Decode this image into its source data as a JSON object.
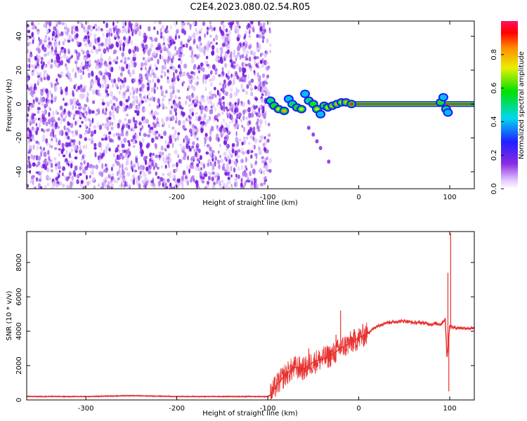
{
  "title": "C2E4.2023.080.02.54.R05",
  "chart_data": [
    {
      "type": "heatmap",
      "xlabel": "Height of straight line (km)",
      "ylabel": "Frequency (Hz)",
      "xlim": [
        -365,
        127
      ],
      "ylim": [
        -50,
        49
      ],
      "xticks": [
        -300,
        -200,
        -100,
        0,
        100
      ],
      "yticks": [
        -40,
        -20,
        0,
        20,
        40
      ],
      "noise_region": {
        "x": [
          -365,
          -97
        ],
        "y": [
          -50,
          49
        ],
        "amplitude": 0.15
      },
      "carrier_line": {
        "x": [
          -10,
          127
        ],
        "y": 0,
        "amplitude": 0.9
      },
      "meteor_trace": [
        {
          "x": -97,
          "y": 2,
          "amplitude": 0.5
        },
        {
          "x": -93,
          "y": -1,
          "amplitude": 0.6
        },
        {
          "x": -88,
          "y": -3,
          "amplitude": 0.7
        },
        {
          "x": -82,
          "y": -4,
          "amplitude": 0.8
        },
        {
          "x": -77,
          "y": 3,
          "amplitude": 0.4
        },
        {
          "x": -73,
          "y": 0,
          "amplitude": 0.5
        },
        {
          "x": -68,
          "y": -2,
          "amplitude": 0.6
        },
        {
          "x": -63,
          "y": -3,
          "amplitude": 0.7
        },
        {
          "x": -59,
          "y": 6,
          "amplitude": 0.4
        },
        {
          "x": -55,
          "y": 2,
          "amplitude": 0.5
        },
        {
          "x": -50,
          "y": 0,
          "amplitude": 0.6
        },
        {
          "x": -46,
          "y": -3,
          "amplitude": 0.7
        },
        {
          "x": -42,
          "y": -6,
          "amplitude": 0.4
        },
        {
          "x": -38,
          "y": -1,
          "amplitude": 0.6
        },
        {
          "x": -34,
          "y": -2,
          "amplitude": 0.7
        },
        {
          "x": -29,
          "y": -1,
          "amplitude": 0.8
        },
        {
          "x": -24,
          "y": 0,
          "amplitude": 0.8
        },
        {
          "x": -19,
          "y": 1,
          "amplitude": 0.7
        },
        {
          "x": -14,
          "y": 1,
          "amplitude": 0.8
        },
        {
          "x": -8,
          "y": 0,
          "amplitude": 0.9
        },
        {
          "x": 90,
          "y": 1,
          "amplitude": 0.6
        },
        {
          "x": 93,
          "y": 4,
          "amplitude": 0.4
        },
        {
          "x": 96,
          "y": -3,
          "amplitude": 0.5
        },
        {
          "x": 98,
          "y": -5,
          "amplitude": 0.4
        }
      ],
      "meteor_tail": [
        {
          "x": -55,
          "y": -14,
          "amplitude": 0.25
        },
        {
          "x": -50,
          "y": -18,
          "amplitude": 0.2
        },
        {
          "x": -46,
          "y": -22,
          "amplitude": 0.2
        },
        {
          "x": -42,
          "y": -26,
          "amplitude": 0.15
        },
        {
          "x": -33,
          "y": -34,
          "amplitude": 0.1
        }
      ],
      "colorbar": {
        "label": "Normalized spectral amplitude",
        "range": [
          0,
          1
        ],
        "ticks": [
          0.0,
          0.2,
          0.4,
          0.6,
          0.8
        ],
        "tick_labels": [
          "0.0",
          "0.2",
          "0.4",
          "0.6",
          "0.8"
        ]
      }
    },
    {
      "type": "line",
      "xlabel": "Height of straight line (km)",
      "ylabel": "SNR (10 * v/v)",
      "xlim": [
        -365,
        127
      ],
      "ylim": [
        0,
        9800
      ],
      "xticks": [
        -300,
        -200,
        -100,
        0,
        100
      ],
      "yticks": [
        0,
        2000,
        4000,
        6000,
        8000
      ],
      "grid": false,
      "series": [
        {
          "color": "#e8302e",
          "x": [
            -365,
            -300,
            -250,
            -200,
            -150,
            -110,
            -100,
            -97,
            -90,
            -80,
            -70,
            -60,
            -50,
            -40,
            -30,
            -20,
            -10,
            0,
            10,
            20,
            30,
            40,
            50,
            60,
            70,
            80,
            85,
            90,
            95,
            97,
            98,
            100,
            105,
            110,
            127
          ],
          "y": [
            200,
            200,
            250,
            200,
            200,
            200,
            200,
            300,
            900,
            1500,
            1900,
            1800,
            2200,
            2400,
            2600,
            3000,
            3300,
            3600,
            3900,
            4300,
            4500,
            4550,
            4600,
            4500,
            4500,
            4400,
            4450,
            4400,
            4700,
            2500,
            3000,
            4300,
            4200,
            4200,
            4150
          ]
        }
      ],
      "spikes": [
        {
          "x": -55,
          "y": 3000
        },
        {
          "x": -20,
          "y": 5200
        },
        {
          "x": -25,
          "y": 3800
        },
        {
          "x": 98,
          "y": 7400
        },
        {
          "x": 101,
          "y": 9700
        },
        {
          "x": 99,
          "y": 500
        }
      ]
    }
  ]
}
